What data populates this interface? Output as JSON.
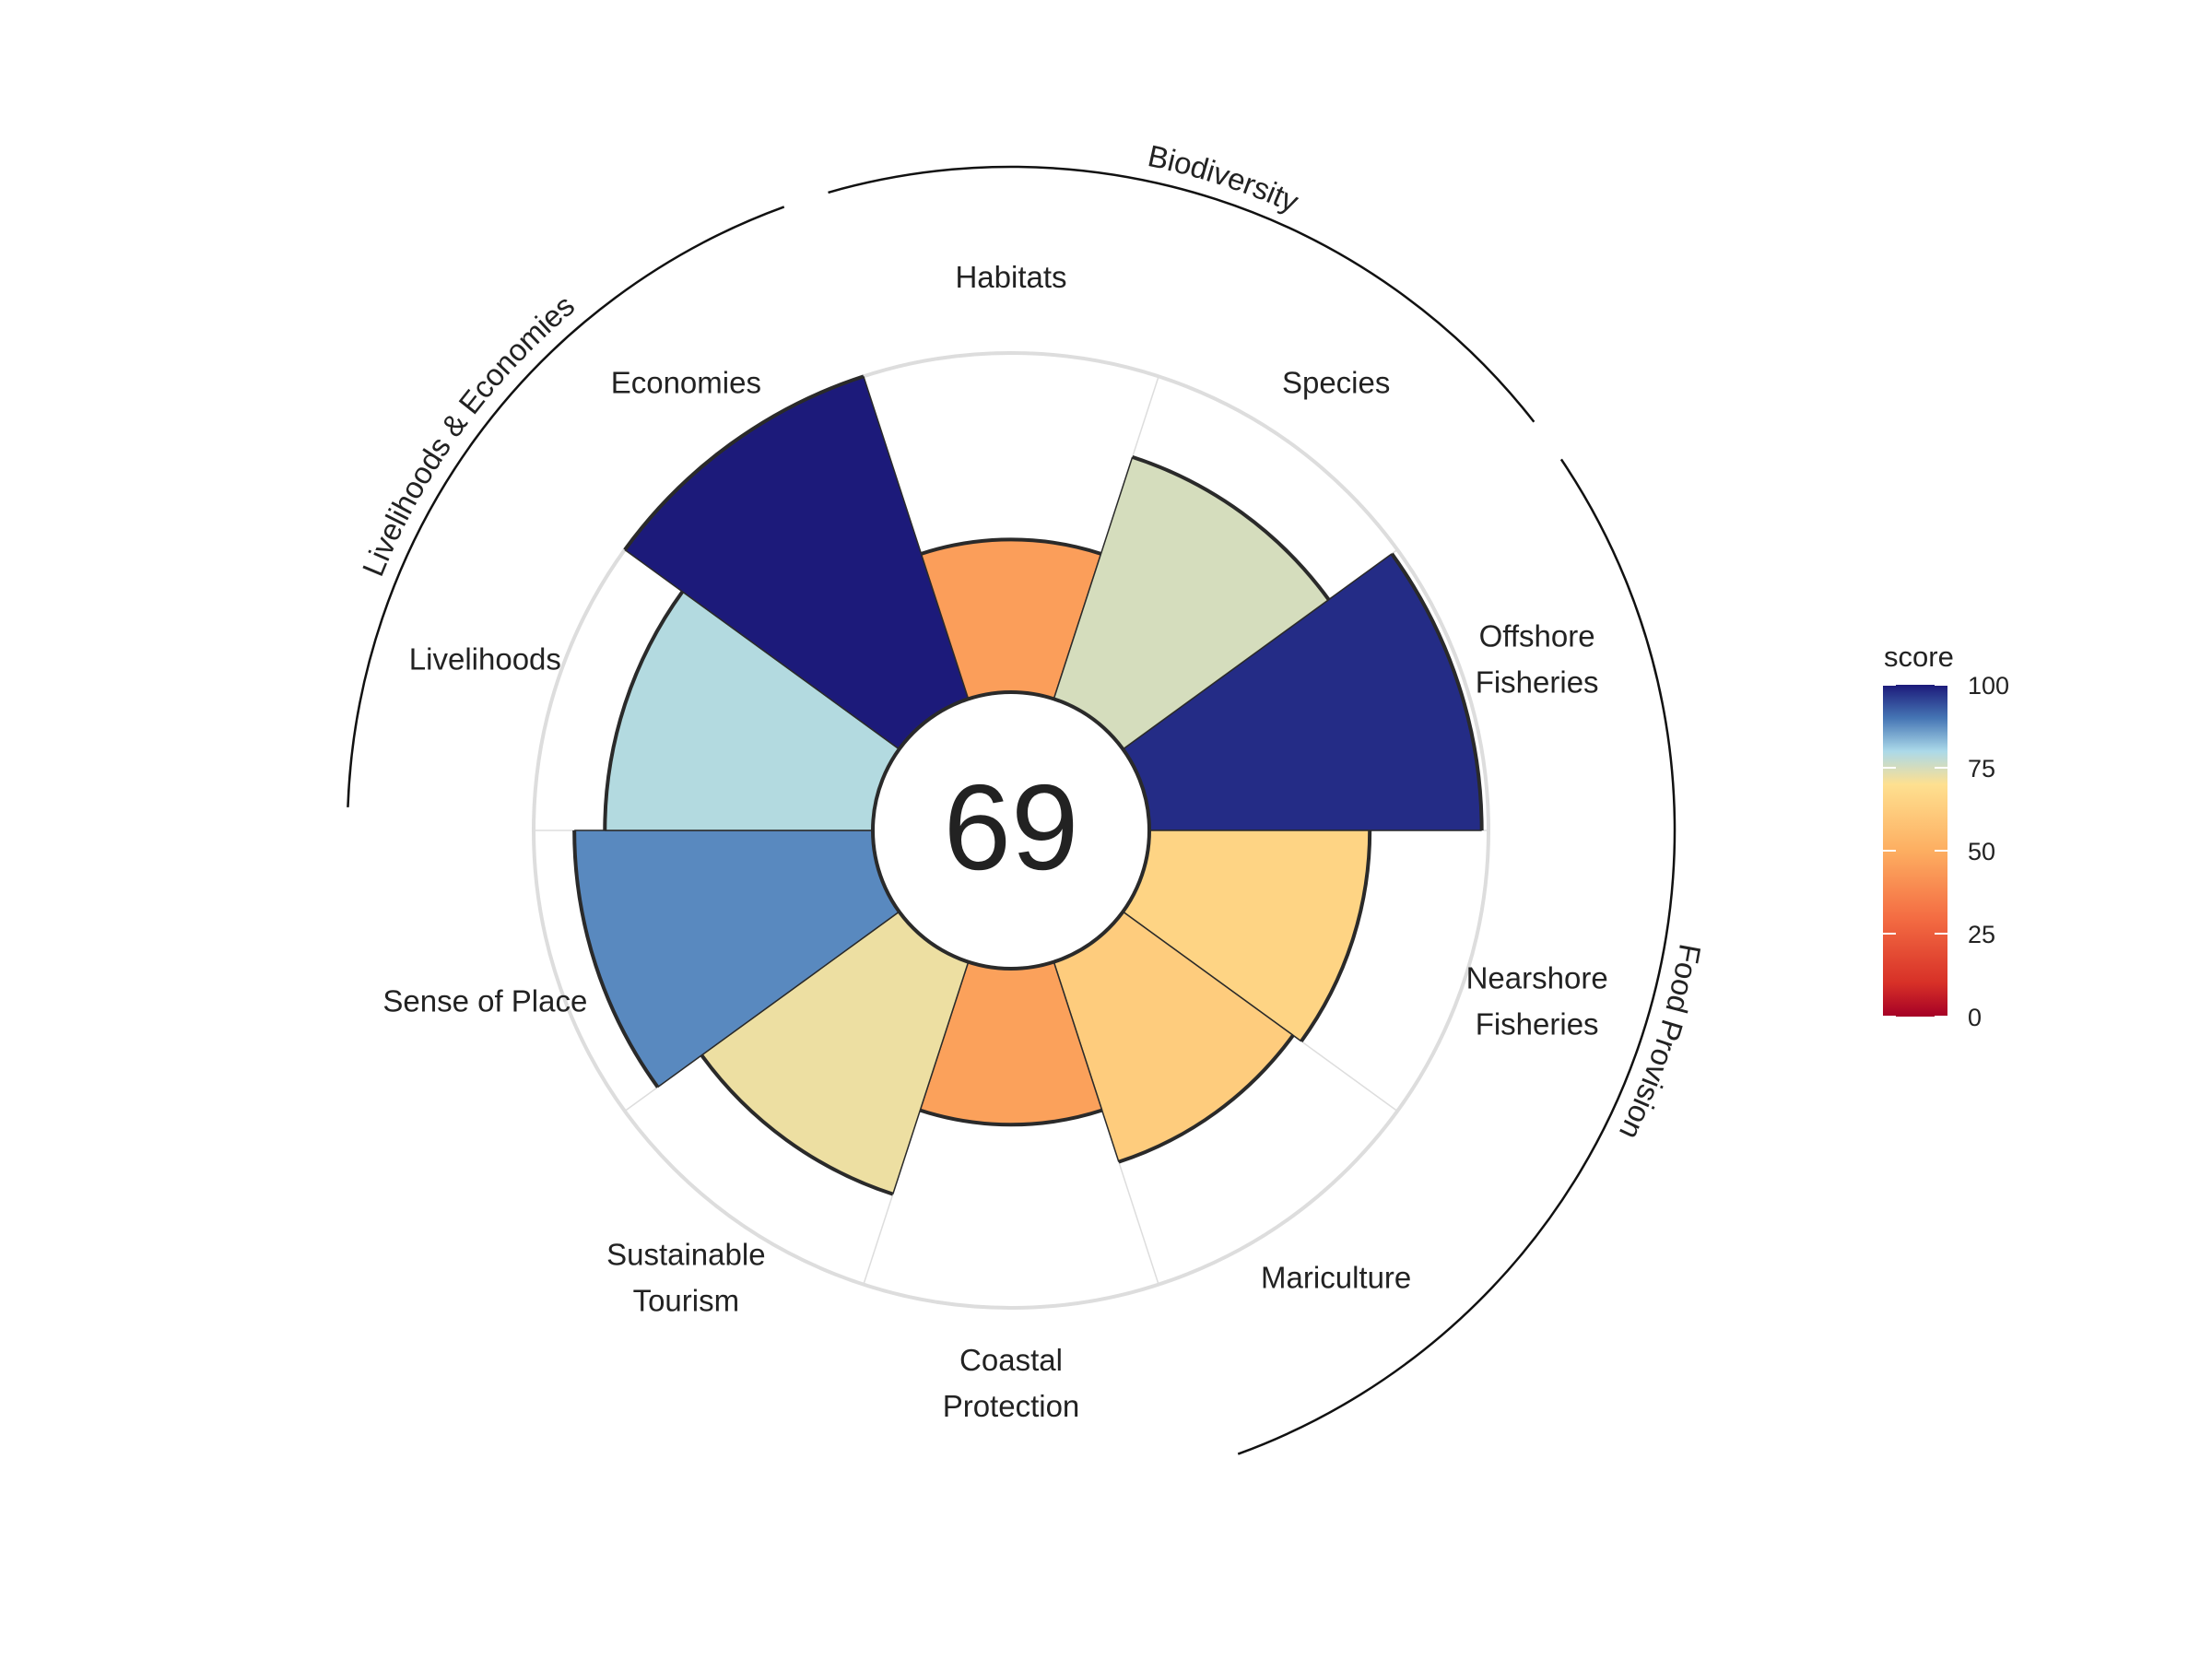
{
  "chart_data": {
    "type": "polar-bar",
    "center_score": "69",
    "score_max": 100,
    "goals": [
      {
        "label_lines": [
          "Offshore",
          "Fisheries"
        ],
        "value": 98
      },
      {
        "label_lines": [
          "Nearshore",
          "Fisheries"
        ],
        "value": 65
      },
      {
        "label_lines": [
          "Mariculture"
        ],
        "value": 62
      },
      {
        "label_lines": [
          "Coastal",
          "Protection"
        ],
        "value": 46
      },
      {
        "label_lines": [
          "Sustainable",
          "Tourism"
        ],
        "value": 72
      },
      {
        "label_lines": [
          "Sense of Place"
        ],
        "value": 88
      },
      {
        "label_lines": [
          "Livelihoods"
        ],
        "value": 79
      },
      {
        "label_lines": [
          "Economies"
        ],
        "value": 100
      },
      {
        "label_lines": [
          "Habitats"
        ],
        "value": 45
      },
      {
        "label_lines": [
          "Species"
        ],
        "value": 75
      }
    ],
    "groups": [
      {
        "label": "Food Provision",
        "start": 0,
        "end": 2
      },
      {
        "label": "Livelihoods & Economies",
        "start": 6,
        "end": 7
      },
      {
        "label": "Biodiversity",
        "start": 8,
        "end": 9
      }
    ],
    "legend": {
      "title": "score",
      "ticks": [
        "0",
        "25",
        "50",
        "75",
        "100"
      ],
      "tick_values": [
        0,
        25,
        50,
        75,
        100
      ],
      "position": "right"
    },
    "colors": {
      "bar_outline": "#2a2a2a",
      "grid": "#dddddd",
      "center_fill": "#ffffff"
    }
  }
}
